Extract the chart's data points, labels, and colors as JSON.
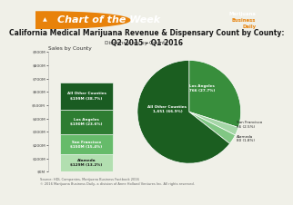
{
  "title_header": "Chart of the Week",
  "title": "California Medical Marijuana Revenue & Dispensary Count by County:\nQ2 2015 - Q1 2016",
  "bar_title": "Sales by County",
  "pie_title": "Dispensaries by County",
  "bar_categories": [
    "Alameda",
    "San Francisco",
    "Los Angeles",
    "All Other Counties"
  ],
  "bar_values": [
    129,
    150,
    190,
    199
  ],
  "bar_labels": [
    "Alameda\n$129M (13.2%)",
    "San Francisco\n$150M (15.4%)",
    "Los Angeles\n$190M (23.6%)",
    "All Other Counties\n$199M (38.7%)"
  ],
  "bar_colors": [
    "#b2dfb0",
    "#66bb6a",
    "#2e7d32",
    "#1a5c22"
  ],
  "bar_ylim": [
    0,
    900
  ],
  "bar_yticks": [
    0,
    100,
    200,
    300,
    400,
    500,
    600,
    700,
    800,
    900
  ],
  "bar_ytick_labels": [
    "$0M",
    "$100M",
    "$200M",
    "$300M",
    "$400M",
    "$500M",
    "$600M",
    "$700M",
    "$800M",
    "$900M"
  ],
  "pie_values": [
    766,
    66,
    80,
    1651
  ],
  "pie_labels_inside": [
    "Los Angeles\n766 (27.7%)",
    "All Other Counties\n1,651 (66.9%)"
  ],
  "pie_labels_outside": [
    "San Francisco\n66 (2.5%)",
    "Alameda\n80 (1.8%)"
  ],
  "pie_colors": [
    "#388e3c",
    "#a5d6a7",
    "#81c784",
    "#1b5e20"
  ],
  "pie_startangle": 90,
  "header_bg": "#2d6a2d",
  "header_text_color": "#ffffff",
  "logo_color": "#e8820a",
  "footer_text": "Source: HDL Companies, Marijuana Business Factbook 2016\n© 2016 Marijuana Business Daily, a division of Anne Holland Ventures Inc. All rights reserved.",
  "bg_color": "#f0f0e8",
  "title_fontsize": 5.5,
  "header_fontsize": 8.0
}
